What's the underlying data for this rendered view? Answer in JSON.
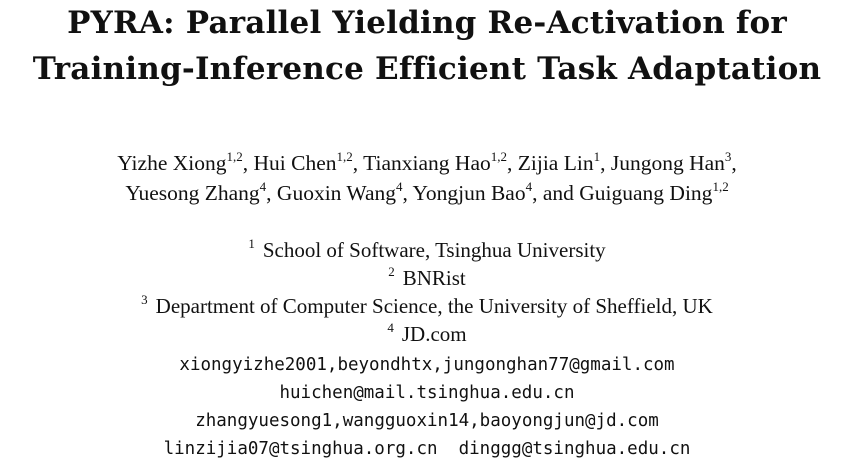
{
  "title": {
    "line1": "PYRA: Parallel Yielding Re-Activation for",
    "line2": "Training-Inference Efficient Task Adaptation"
  },
  "authors": {
    "line1": [
      {
        "name": "Yizhe Xiong",
        "aff": "1,2"
      },
      {
        "name": "Hui Chen",
        "aff": "1,2"
      },
      {
        "name": "Tianxiang Hao",
        "aff": "1,2"
      },
      {
        "name": "Zijia Lin",
        "aff": "1"
      },
      {
        "name": "Jungong Han",
        "aff": "3"
      }
    ],
    "line2": [
      {
        "name": "Yuesong Zhang",
        "aff": "4"
      },
      {
        "name": "Guoxin Wang",
        "aff": "4"
      },
      {
        "name": "Yongjun Bao",
        "aff": "4"
      },
      {
        "name": "and Guiguang Ding",
        "aff": "1,2"
      }
    ],
    "separator": ", "
  },
  "affiliations": [
    {
      "mark": "1",
      "text": "School of Software, Tsinghua University"
    },
    {
      "mark": "2",
      "text": "BNRist"
    },
    {
      "mark": "3",
      "text": "Department of Computer Science, the University of Sheffield, UK"
    },
    {
      "mark": "4",
      "text": "JD.com"
    }
  ],
  "emails": [
    "xiongyizhe2001,beyondhtx,jungonghan77@gmail.com",
    "huichen@mail.tsinghua.edu.cn",
    "zhangyuesong1,wangguoxin14,baoyongjun@jd.com",
    "linzijia07@tsinghua.org.cn  dinggg@tsinghua.edu.cn"
  ]
}
